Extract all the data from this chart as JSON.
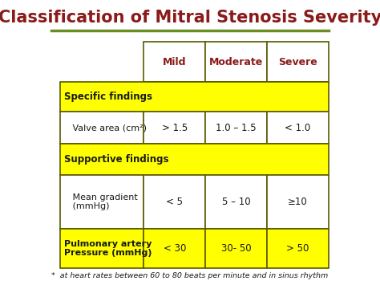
{
  "title": "Classification of Mitral Stenosis Severity",
  "title_color": "#8B1A1A",
  "title_fontsize": 15,
  "bg_color": "#FFFFFF",
  "header_line_color": "#6B8E23",
  "col_headers": [
    "Mild",
    "Moderate",
    "Severe"
  ],
  "col_header_color": "#8B1A1A",
  "yellow_bg": "#FFFF00",
  "white_bg": "#FFFFFF",
  "border_color": "#5A5A00",
  "footnote": "*  at heart rates between 60 to 80 beats per minute and in sinus rhythm",
  "rows": [
    {
      "label": "Specific findings",
      "values": [
        "",
        "",
        ""
      ],
      "yellow": true,
      "bold": true,
      "span": true
    },
    {
      "label": "   Valve area (cm²)",
      "values": [
        "> 1.5",
        "1.0 – 1.5",
        "< 1.0"
      ],
      "yellow": false,
      "bold": false,
      "span": false
    },
    {
      "label": "Supportive findings",
      "values": [
        "",
        "",
        ""
      ],
      "yellow": true,
      "bold": true,
      "span": true
    },
    {
      "label": "   Mean gradient\n   (mmHg)",
      "values": [
        "< 5",
        "5 – 10",
        "≥10"
      ],
      "yellow": false,
      "bold": false,
      "span": false
    },
    {
      "label": "Pulmonary artery\nPressure (mmHg)",
      "values": [
        "< 30",
        "30- 50",
        "> 50"
      ],
      "yellow": true,
      "bold": true,
      "span": false
    }
  ]
}
